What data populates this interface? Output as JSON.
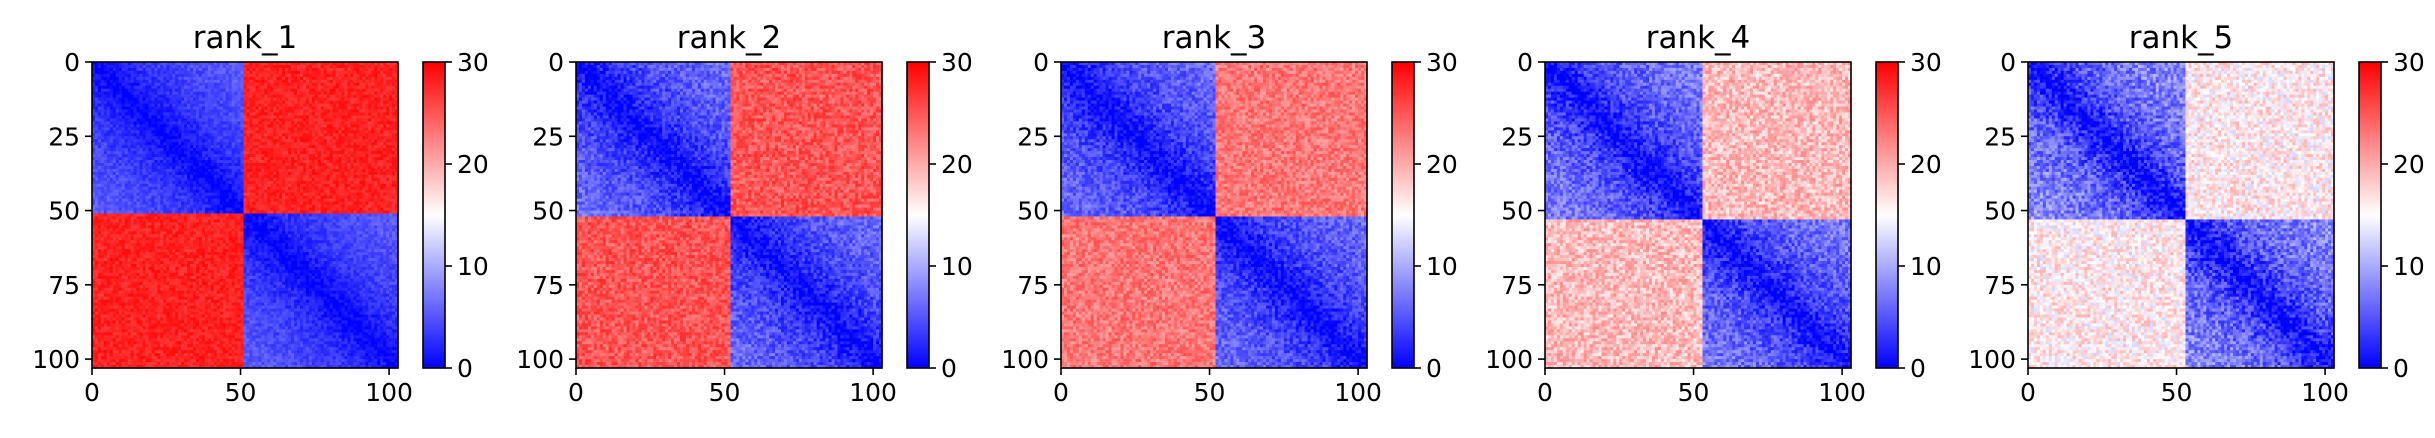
{
  "chart_data": [
    {
      "type": "heatmap",
      "title": "rank_1",
      "xlabel": "",
      "ylabel": "",
      "xticks": [
        0,
        50,
        100
      ],
      "yticks": [
        0,
        25,
        50,
        75,
        100
      ],
      "xlim": [
        0,
        103
      ],
      "ylim": [
        103,
        0
      ],
      "matrix_size": 103,
      "colorbar": {
        "min": 0,
        "max": 30,
        "ticks": [
          0,
          10,
          20,
          30
        ],
        "colormap": "bwr"
      },
      "structure": {
        "domain_boundary": 51,
        "intra_domain_value": 3,
        "inter_domain_value": 28,
        "diagonal_value": 0,
        "noise": 1.5
      }
    },
    {
      "type": "heatmap",
      "title": "rank_2",
      "xlabel": "",
      "ylabel": "",
      "xticks": [
        0,
        50,
        100
      ],
      "yticks": [
        0,
        25,
        50,
        75,
        100
      ],
      "xlim": [
        0,
        103
      ],
      "ylim": [
        103,
        0
      ],
      "matrix_size": 103,
      "colorbar": {
        "min": 0,
        "max": 30,
        "ticks": [
          0,
          10,
          20,
          30
        ],
        "colormap": "bwr"
      },
      "structure": {
        "domain_boundary": 52,
        "intra_domain_value": 4,
        "inter_domain_value": 25,
        "diagonal_value": 0,
        "noise": 2.5
      }
    },
    {
      "type": "heatmap",
      "title": "rank_3",
      "xlabel": "",
      "ylabel": "",
      "xticks": [
        0,
        50,
        100
      ],
      "yticks": [
        0,
        25,
        50,
        75,
        100
      ],
      "xlim": [
        0,
        103
      ],
      "ylim": [
        103,
        0
      ],
      "matrix_size": 103,
      "colorbar": {
        "min": 0,
        "max": 30,
        "ticks": [
          0,
          10,
          20,
          30
        ],
        "colormap": "bwr"
      },
      "structure": {
        "domain_boundary": 52,
        "intra_domain_value": 4,
        "inter_domain_value": 23,
        "diagonal_value": 0,
        "noise": 2.5
      }
    },
    {
      "type": "heatmap",
      "title": "rank_4",
      "xlabel": "",
      "ylabel": "",
      "xticks": [
        0,
        50,
        100
      ],
      "yticks": [
        0,
        25,
        50,
        75,
        100
      ],
      "xlim": [
        0,
        103
      ],
      "ylim": [
        103,
        0
      ],
      "matrix_size": 103,
      "colorbar": {
        "min": 0,
        "max": 30,
        "ticks": [
          0,
          10,
          20,
          30
        ],
        "colormap": "bwr"
      },
      "structure": {
        "domain_boundary": 53,
        "intra_domain_value": 5,
        "inter_domain_value": 19,
        "diagonal_value": 0,
        "noise": 3
      }
    },
    {
      "type": "heatmap",
      "title": "rank_5",
      "xlabel": "",
      "ylabel": "",
      "xticks": [
        0,
        50,
        100
      ],
      "yticks": [
        0,
        25,
        50,
        75,
        100
      ],
      "xlim": [
        0,
        103
      ],
      "ylim": [
        103,
        0
      ],
      "matrix_size": 103,
      "colorbar": {
        "min": 0,
        "max": 30,
        "ticks": [
          0,
          10,
          20,
          30
        ],
        "colormap": "bwr"
      },
      "structure": {
        "domain_boundary": 53,
        "intra_domain_value": 6,
        "inter_domain_value": 16,
        "diagonal_value": 0,
        "noise": 3.5
      }
    }
  ]
}
